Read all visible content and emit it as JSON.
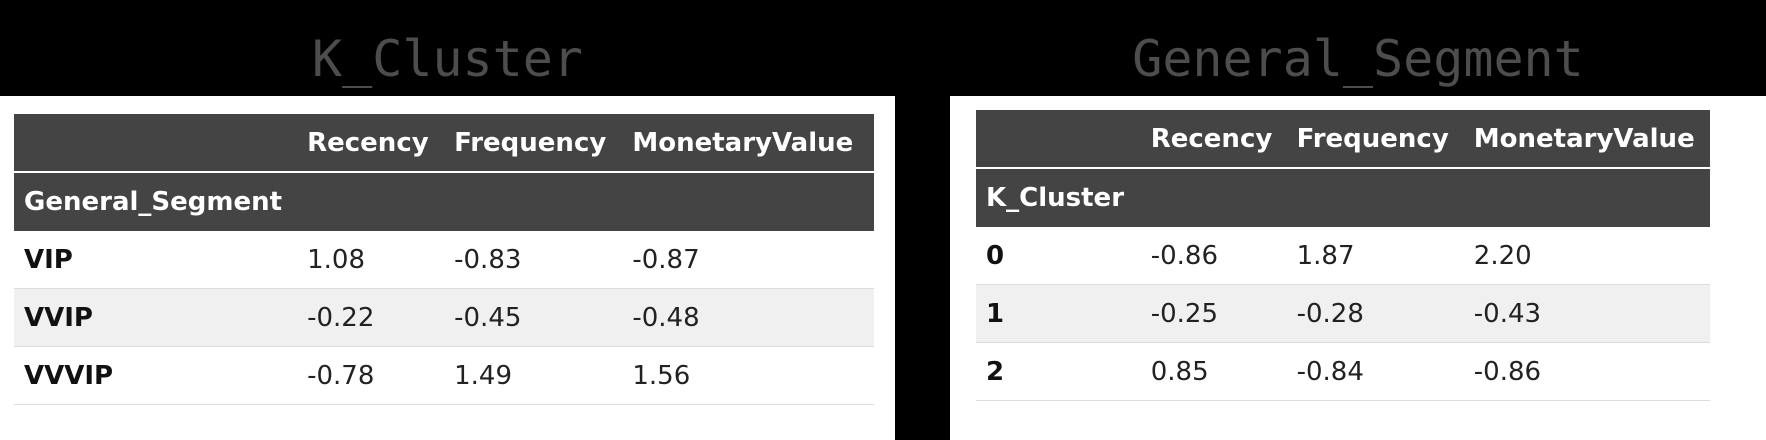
{
  "left": {
    "title": "K_Cluster",
    "columns": [
      "",
      "Recency",
      "Frequency",
      "MonetaryValue"
    ],
    "index_name": "General_Segment",
    "rows": [
      {
        "label": "VIP",
        "values": [
          "1.08",
          "-0.83",
          "-0.87"
        ]
      },
      {
        "label": "VVIP",
        "values": [
          "-0.22",
          "-0.45",
          "-0.48"
        ]
      },
      {
        "label": "VVVIP",
        "values": [
          "-0.78",
          "1.49",
          "1.56"
        ]
      }
    ]
  },
  "right": {
    "title": "General_Segment",
    "columns": [
      "",
      "Recency",
      "Frequency",
      "MonetaryValue"
    ],
    "index_name": "K_Cluster",
    "rows": [
      {
        "label": "0",
        "values": [
          "-0.86",
          "1.87",
          "2.20"
        ]
      },
      {
        "label": "1",
        "values": [
          "-0.25",
          "-0.28",
          "-0.43"
        ]
      },
      {
        "label": "2",
        "values": [
          "0.85",
          "-0.84",
          "-0.86"
        ]
      }
    ]
  }
}
